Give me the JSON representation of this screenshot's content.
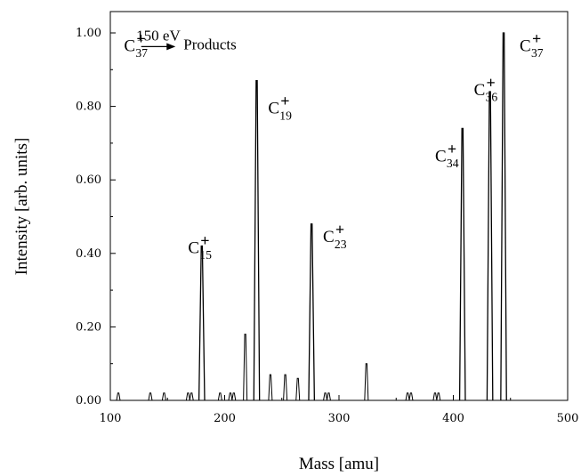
{
  "chart_data": {
    "type": "line",
    "title": "",
    "xlabel": "Mass [amu]",
    "ylabel": "Intensity [arb. units]",
    "xlim": [
      100,
      500
    ],
    "ylim": [
      0,
      1.0
    ],
    "xticks": [
      100,
      200,
      300,
      400,
      500
    ],
    "yticks": [
      0.0,
      0.2,
      0.4,
      0.6,
      0.8,
      1.0
    ],
    "xtick_labels": [
      "100",
      "200",
      "300",
      "400",
      "500"
    ],
    "ytick_labels": [
      "0.00",
      "0.20",
      "0.40",
      "0.60",
      "0.80",
      "1.00"
    ],
    "grid": false,
    "reaction": {
      "reactant": "C",
      "reactant_sub": "37",
      "reactant_sup": "+",
      "energy": "150 eV",
      "product": "Products"
    },
    "peaks": [
      {
        "mass": 107,
        "intensity": 0.02
      },
      {
        "mass": 135,
        "intensity": 0.02
      },
      {
        "mass": 147,
        "intensity": 0.02
      },
      {
        "mass": 168,
        "intensity": 0.02
      },
      {
        "mass": 171,
        "intensity": 0.02
      },
      {
        "mass": 180,
        "intensity": 0.42
      },
      {
        "mass": 196,
        "intensity": 0.02
      },
      {
        "mass": 205,
        "intensity": 0.02
      },
      {
        "mass": 208,
        "intensity": 0.02
      },
      {
        "mass": 218,
        "intensity": 0.18
      },
      {
        "mass": 228,
        "intensity": 0.87
      },
      {
        "mass": 240,
        "intensity": 0.07
      },
      {
        "mass": 253,
        "intensity": 0.07
      },
      {
        "mass": 264,
        "intensity": 0.06
      },
      {
        "mass": 276,
        "intensity": 0.48
      },
      {
        "mass": 288,
        "intensity": 0.02
      },
      {
        "mass": 291,
        "intensity": 0.02
      },
      {
        "mass": 324,
        "intensity": 0.1
      },
      {
        "mass": 360,
        "intensity": 0.02
      },
      {
        "mass": 363,
        "intensity": 0.02
      },
      {
        "mass": 384,
        "intensity": 0.02
      },
      {
        "mass": 387,
        "intensity": 0.02
      },
      {
        "mass": 408,
        "intensity": 0.74
      },
      {
        "mass": 432,
        "intensity": 0.84
      },
      {
        "mass": 444,
        "intensity": 1.0
      }
    ],
    "annotations": [
      {
        "base": "C",
        "sub": "15",
        "sup": "+",
        "mass": 168,
        "intensity": 0.42
      },
      {
        "base": "C",
        "sub": "19",
        "sup": "+",
        "mass": 238,
        "intensity": 0.8
      },
      {
        "base": "C",
        "sub": "23",
        "sup": "+",
        "mass": 286,
        "intensity": 0.45
      },
      {
        "base": "C",
        "sub": "34",
        "sup": "+",
        "mass": 384,
        "intensity": 0.67
      },
      {
        "base": "C",
        "sub": "36",
        "sup": "+",
        "mass": 418,
        "intensity": 0.85
      },
      {
        "base": "C",
        "sub": "37",
        "sup": "+",
        "mass": 458,
        "intensity": 0.97
      }
    ]
  }
}
